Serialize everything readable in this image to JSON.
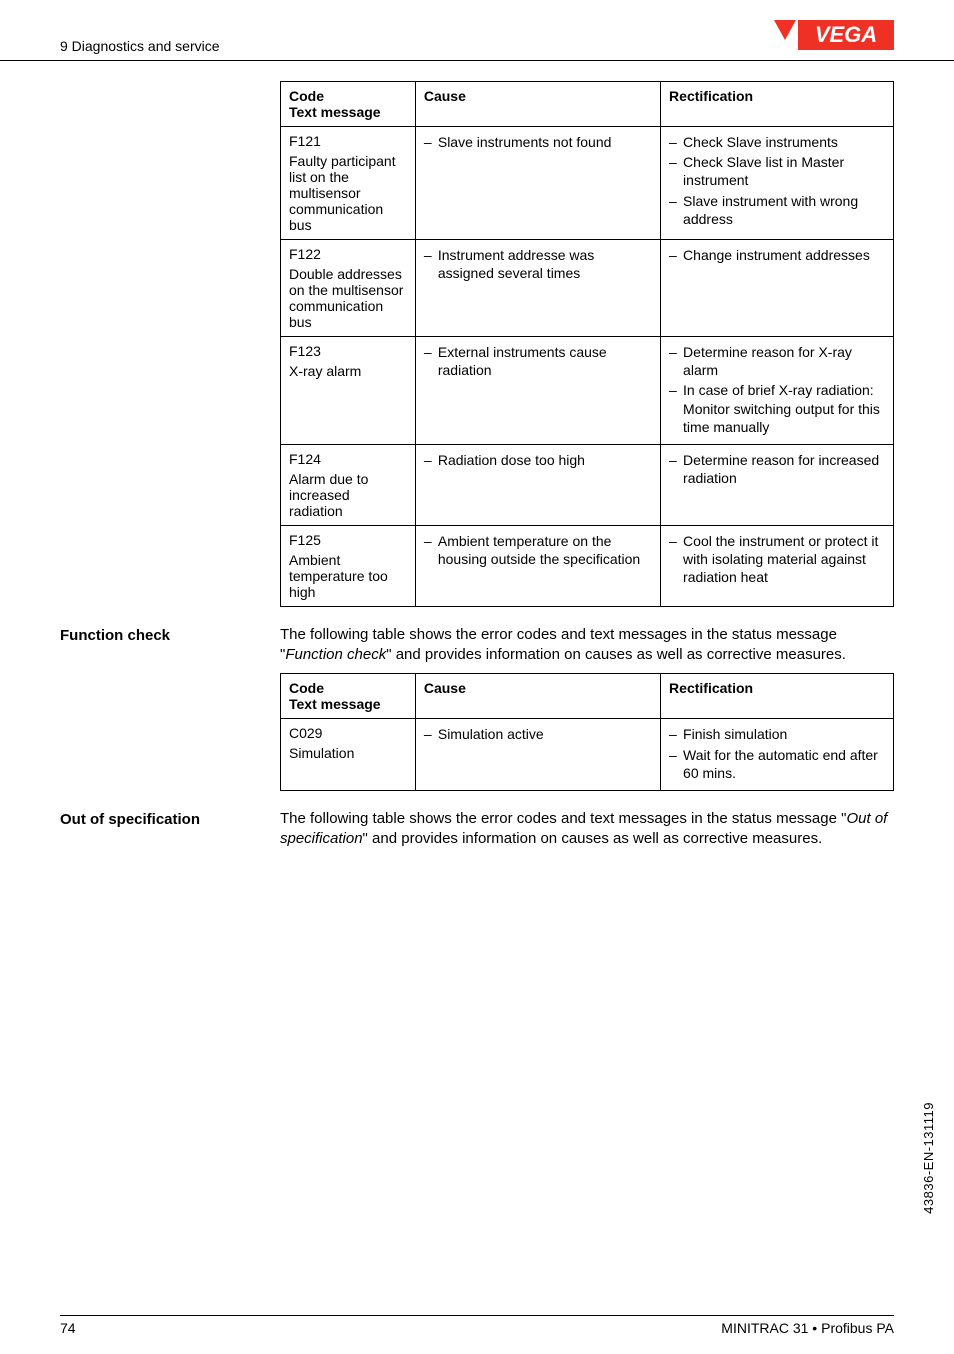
{
  "header": {
    "section": "9 Diagnostics and service",
    "logo_text": "VEGA",
    "logo_bg": "#ee3124",
    "logo_fg": "#ffffff"
  },
  "table1": {
    "headers": {
      "code": "Code",
      "textmsg": "Text message",
      "cause": "Cause",
      "rect": "Rectification"
    },
    "rows": [
      {
        "code": "F121",
        "desc": "Faulty participant list on the multisensor communication bus",
        "cause": [
          "Slave instruments not found"
        ],
        "rect": [
          "Check Slave instruments",
          "Check Slave list in Master instrument",
          "Slave instrument with wrong address"
        ]
      },
      {
        "code": "F122",
        "desc": "Double addresses on the multisensor communication bus",
        "cause": [
          "Instrument addresse was assigned several times"
        ],
        "rect": [
          "Change instrument addresses"
        ]
      },
      {
        "code": "F123",
        "desc": "X-ray alarm",
        "cause": [
          "External instruments cause radiation"
        ],
        "rect": [
          "Determine reason for X-ray alarm",
          "In case of brief X-ray radiation: Monitor switching output for this time manually"
        ]
      },
      {
        "code": "F124",
        "desc": "Alarm due to increased radiation",
        "cause": [
          "Radiation dose too high"
        ],
        "rect": [
          "Determine reason for increased radiation"
        ]
      },
      {
        "code": "F125",
        "desc": "Ambient temperature too high",
        "cause": [
          "Ambient temperature on the housing outside the specification"
        ],
        "rect": [
          "Cool the instrument or protect it with isolating material against radiation heat"
        ]
      }
    ]
  },
  "section_function": {
    "label": "Function check",
    "para_pre": "The following table shows the error codes and text messages in the status message \"",
    "para_em": "Function check",
    "para_post": "\" and provides information on causes as well as corrective measures."
  },
  "table2": {
    "headers": {
      "code": "Code",
      "textmsg": "Text message",
      "cause": "Cause",
      "rect": "Rectification"
    },
    "rows": [
      {
        "code": "C029",
        "desc": "Simulation",
        "cause": [
          "Simulation active"
        ],
        "rect": [
          "Finish simulation",
          "Wait for the automatic end after 60 mins."
        ]
      }
    ]
  },
  "section_outspec": {
    "label": "Out of specification",
    "para_pre": "The following table shows the error codes and text messages in the status message \"",
    "para_em": "Out of specification",
    "para_post": "\" and provides information on causes as well as corrective measures."
  },
  "footer": {
    "page": "74",
    "product": "MINITRAC 31 • Profibus PA"
  },
  "side_code": "43836-EN-131119"
}
